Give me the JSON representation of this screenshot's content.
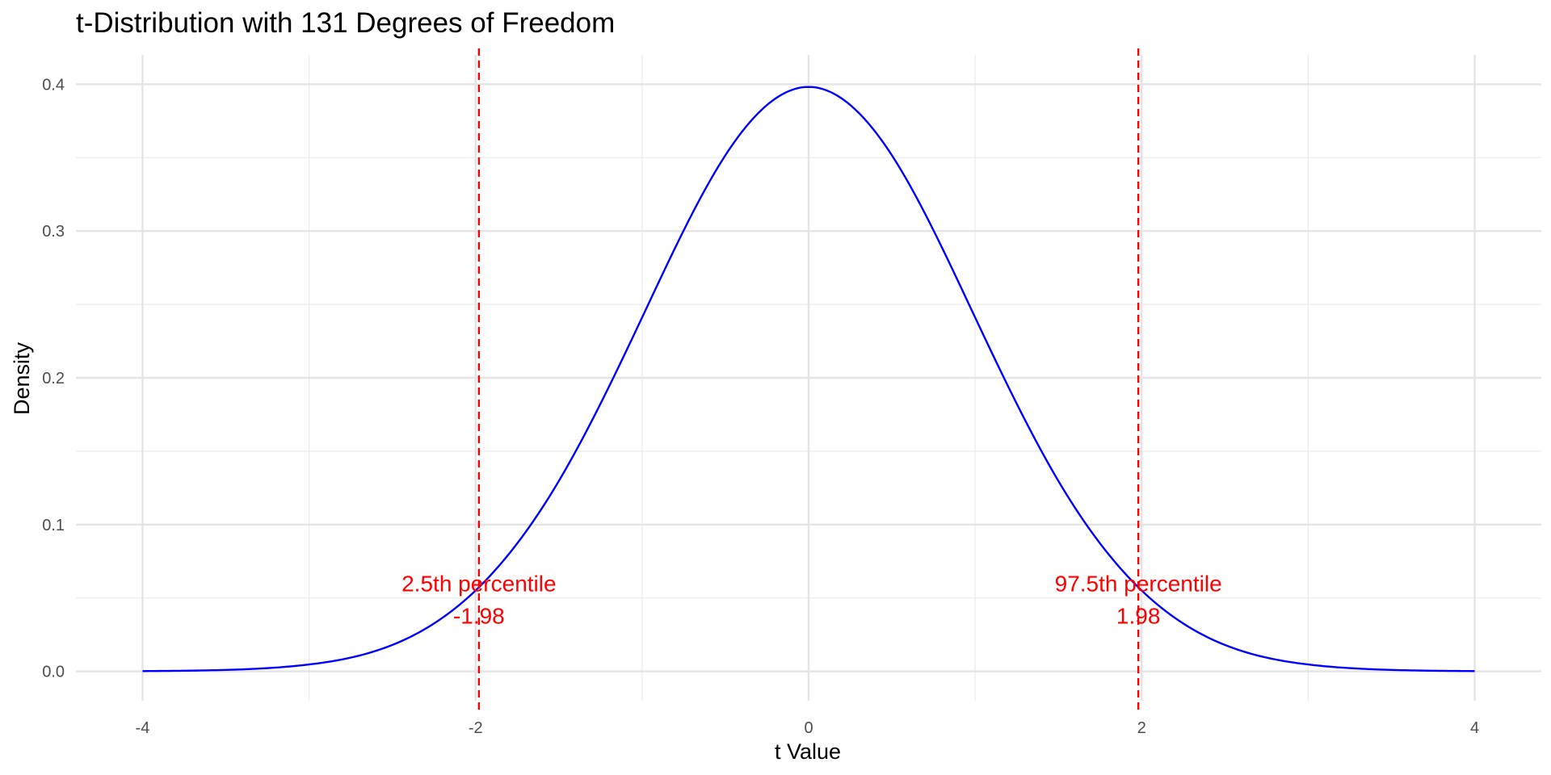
{
  "chart_data": {
    "type": "line",
    "title": "t-Distribution with 131 Degrees of Freedom",
    "xlabel": "t Value",
    "ylabel": "Density",
    "xlim": [
      -4.4,
      4.4
    ],
    "ylim": [
      -0.02,
      0.42
    ],
    "x_ticks": [
      -4,
      -2,
      0,
      2,
      4
    ],
    "x_tick_labels": [
      "-4",
      "-2",
      "0",
      "2",
      "4"
    ],
    "y_ticks": [
      0.0,
      0.1,
      0.2,
      0.3,
      0.4
    ],
    "y_tick_labels": [
      "0.0",
      "0.1",
      "0.2",
      "0.3",
      "0.4"
    ],
    "grid": true,
    "series": [
      {
        "color": "#0000ff",
        "x": [
          -4,
          -3.5,
          -3,
          -2.5,
          -2,
          -1.5,
          -1,
          -0.5,
          0,
          0.5,
          1,
          1.5,
          2,
          2.5,
          3,
          3.5,
          4
        ],
        "y": [
          0.0002,
          0.001,
          0.0047,
          0.018,
          0.0551,
          0.1297,
          0.2411,
          0.3516,
          0.3982,
          0.3516,
          0.2411,
          0.1297,
          0.0551,
          0.018,
          0.0047,
          0.001,
          0.0002
        ]
      }
    ],
    "vlines": [
      {
        "x": -1.98,
        "color": "#ff0000",
        "style": "dashed"
      },
      {
        "x": 1.98,
        "color": "#ff0000",
        "style": "dashed"
      }
    ],
    "annotations": [
      {
        "label": "2.5th percentile",
        "value_label": "-1.98",
        "x": -1.98,
        "y_label": 0.06,
        "y_value": 0.038,
        "color": "#ff0000"
      },
      {
        "label": "97.5th percentile",
        "value_label": "1.98",
        "x": 1.98,
        "y_label": 0.06,
        "y_value": 0.038,
        "color": "#ff0000"
      }
    ]
  }
}
